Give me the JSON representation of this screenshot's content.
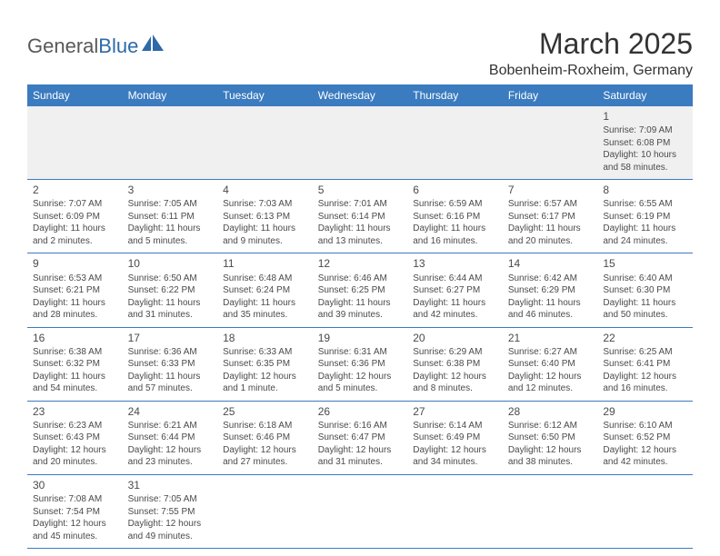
{
  "logo": {
    "text1": "General",
    "text2": "Blue"
  },
  "title": "March 2025",
  "location": "Bobenheim-Roxheim, Germany",
  "style": {
    "header_bg": "#3b7bbf",
    "header_fg": "#ffffff",
    "first_row_bg": "#f0f0f0",
    "border_color": "#3b7bbf",
    "body_font_size": 10,
    "title_font_size": 32,
    "location_font_size": 16,
    "dayheader_font_size": 12
  },
  "day_headers": [
    "Sunday",
    "Monday",
    "Tuesday",
    "Wednesday",
    "Thursday",
    "Friday",
    "Saturday"
  ],
  "weeks": [
    [
      null,
      null,
      null,
      null,
      null,
      null,
      {
        "n": "1",
        "sr": "Sunrise: 7:09 AM",
        "ss": "Sunset: 6:08 PM",
        "dl1": "Daylight: 10 hours",
        "dl2": "and 58 minutes."
      }
    ],
    [
      {
        "n": "2",
        "sr": "Sunrise: 7:07 AM",
        "ss": "Sunset: 6:09 PM",
        "dl1": "Daylight: 11 hours",
        "dl2": "and 2 minutes."
      },
      {
        "n": "3",
        "sr": "Sunrise: 7:05 AM",
        "ss": "Sunset: 6:11 PM",
        "dl1": "Daylight: 11 hours",
        "dl2": "and 5 minutes."
      },
      {
        "n": "4",
        "sr": "Sunrise: 7:03 AM",
        "ss": "Sunset: 6:13 PM",
        "dl1": "Daylight: 11 hours",
        "dl2": "and 9 minutes."
      },
      {
        "n": "5",
        "sr": "Sunrise: 7:01 AM",
        "ss": "Sunset: 6:14 PM",
        "dl1": "Daylight: 11 hours",
        "dl2": "and 13 minutes."
      },
      {
        "n": "6",
        "sr": "Sunrise: 6:59 AM",
        "ss": "Sunset: 6:16 PM",
        "dl1": "Daylight: 11 hours",
        "dl2": "and 16 minutes."
      },
      {
        "n": "7",
        "sr": "Sunrise: 6:57 AM",
        "ss": "Sunset: 6:17 PM",
        "dl1": "Daylight: 11 hours",
        "dl2": "and 20 minutes."
      },
      {
        "n": "8",
        "sr": "Sunrise: 6:55 AM",
        "ss": "Sunset: 6:19 PM",
        "dl1": "Daylight: 11 hours",
        "dl2": "and 24 minutes."
      }
    ],
    [
      {
        "n": "9",
        "sr": "Sunrise: 6:53 AM",
        "ss": "Sunset: 6:21 PM",
        "dl1": "Daylight: 11 hours",
        "dl2": "and 28 minutes."
      },
      {
        "n": "10",
        "sr": "Sunrise: 6:50 AM",
        "ss": "Sunset: 6:22 PM",
        "dl1": "Daylight: 11 hours",
        "dl2": "and 31 minutes."
      },
      {
        "n": "11",
        "sr": "Sunrise: 6:48 AM",
        "ss": "Sunset: 6:24 PM",
        "dl1": "Daylight: 11 hours",
        "dl2": "and 35 minutes."
      },
      {
        "n": "12",
        "sr": "Sunrise: 6:46 AM",
        "ss": "Sunset: 6:25 PM",
        "dl1": "Daylight: 11 hours",
        "dl2": "and 39 minutes."
      },
      {
        "n": "13",
        "sr": "Sunrise: 6:44 AM",
        "ss": "Sunset: 6:27 PM",
        "dl1": "Daylight: 11 hours",
        "dl2": "and 42 minutes."
      },
      {
        "n": "14",
        "sr": "Sunrise: 6:42 AM",
        "ss": "Sunset: 6:29 PM",
        "dl1": "Daylight: 11 hours",
        "dl2": "and 46 minutes."
      },
      {
        "n": "15",
        "sr": "Sunrise: 6:40 AM",
        "ss": "Sunset: 6:30 PM",
        "dl1": "Daylight: 11 hours",
        "dl2": "and 50 minutes."
      }
    ],
    [
      {
        "n": "16",
        "sr": "Sunrise: 6:38 AM",
        "ss": "Sunset: 6:32 PM",
        "dl1": "Daylight: 11 hours",
        "dl2": "and 54 minutes."
      },
      {
        "n": "17",
        "sr": "Sunrise: 6:36 AM",
        "ss": "Sunset: 6:33 PM",
        "dl1": "Daylight: 11 hours",
        "dl2": "and 57 minutes."
      },
      {
        "n": "18",
        "sr": "Sunrise: 6:33 AM",
        "ss": "Sunset: 6:35 PM",
        "dl1": "Daylight: 12 hours",
        "dl2": "and 1 minute."
      },
      {
        "n": "19",
        "sr": "Sunrise: 6:31 AM",
        "ss": "Sunset: 6:36 PM",
        "dl1": "Daylight: 12 hours",
        "dl2": "and 5 minutes."
      },
      {
        "n": "20",
        "sr": "Sunrise: 6:29 AM",
        "ss": "Sunset: 6:38 PM",
        "dl1": "Daylight: 12 hours",
        "dl2": "and 8 minutes."
      },
      {
        "n": "21",
        "sr": "Sunrise: 6:27 AM",
        "ss": "Sunset: 6:40 PM",
        "dl1": "Daylight: 12 hours",
        "dl2": "and 12 minutes."
      },
      {
        "n": "22",
        "sr": "Sunrise: 6:25 AM",
        "ss": "Sunset: 6:41 PM",
        "dl1": "Daylight: 12 hours",
        "dl2": "and 16 minutes."
      }
    ],
    [
      {
        "n": "23",
        "sr": "Sunrise: 6:23 AM",
        "ss": "Sunset: 6:43 PM",
        "dl1": "Daylight: 12 hours",
        "dl2": "and 20 minutes."
      },
      {
        "n": "24",
        "sr": "Sunrise: 6:21 AM",
        "ss": "Sunset: 6:44 PM",
        "dl1": "Daylight: 12 hours",
        "dl2": "and 23 minutes."
      },
      {
        "n": "25",
        "sr": "Sunrise: 6:18 AM",
        "ss": "Sunset: 6:46 PM",
        "dl1": "Daylight: 12 hours",
        "dl2": "and 27 minutes."
      },
      {
        "n": "26",
        "sr": "Sunrise: 6:16 AM",
        "ss": "Sunset: 6:47 PM",
        "dl1": "Daylight: 12 hours",
        "dl2": "and 31 minutes."
      },
      {
        "n": "27",
        "sr": "Sunrise: 6:14 AM",
        "ss": "Sunset: 6:49 PM",
        "dl1": "Daylight: 12 hours",
        "dl2": "and 34 minutes."
      },
      {
        "n": "28",
        "sr": "Sunrise: 6:12 AM",
        "ss": "Sunset: 6:50 PM",
        "dl1": "Daylight: 12 hours",
        "dl2": "and 38 minutes."
      },
      {
        "n": "29",
        "sr": "Sunrise: 6:10 AM",
        "ss": "Sunset: 6:52 PM",
        "dl1": "Daylight: 12 hours",
        "dl2": "and 42 minutes."
      }
    ],
    [
      {
        "n": "30",
        "sr": "Sunrise: 7:08 AM",
        "ss": "Sunset: 7:54 PM",
        "dl1": "Daylight: 12 hours",
        "dl2": "and 45 minutes."
      },
      {
        "n": "31",
        "sr": "Sunrise: 7:05 AM",
        "ss": "Sunset: 7:55 PM",
        "dl1": "Daylight: 12 hours",
        "dl2": "and 49 minutes."
      },
      null,
      null,
      null,
      null,
      null
    ]
  ]
}
